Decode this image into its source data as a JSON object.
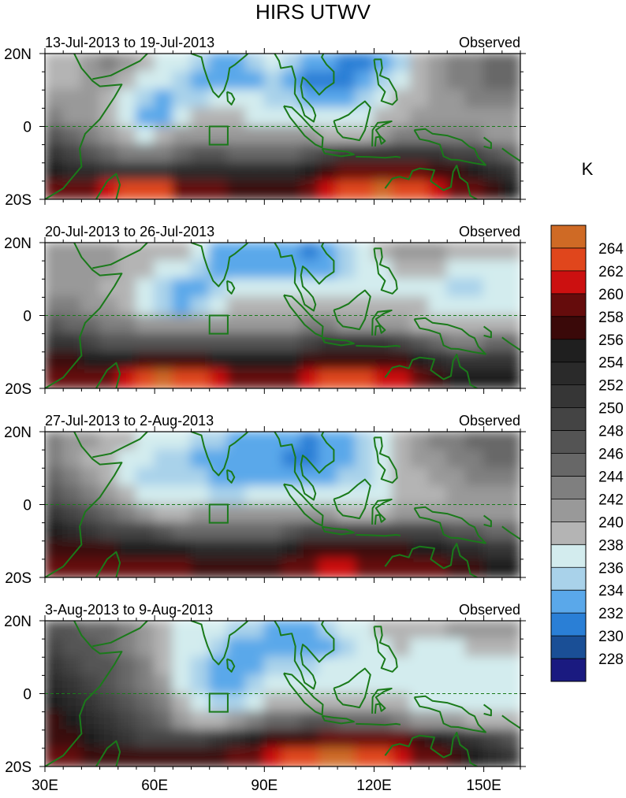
{
  "chart_data": {
    "type": "heatmap",
    "title": "HIRS UTWV",
    "units_label": "K",
    "x_ticks": [
      {
        "value": 30,
        "label": "30E"
      },
      {
        "value": 60,
        "label": "60E"
      },
      {
        "value": 90,
        "label": "90E"
      },
      {
        "value": 120,
        "label": "120E"
      },
      {
        "value": 150,
        "label": "150E"
      }
    ],
    "y_ticks": [
      {
        "value": 20,
        "label": "20N"
      },
      {
        "value": 0,
        "label": "0"
      },
      {
        "value": -20,
        "label": "20S"
      }
    ],
    "xlim": [
      30,
      160
    ],
    "ylim": [
      -20,
      20
    ],
    "colorbar": {
      "levels": [
        228,
        230,
        232,
        234,
        236,
        238,
        240,
        242,
        244,
        246,
        248,
        250,
        252,
        254,
        256,
        258,
        260,
        262,
        264
      ],
      "colors": [
        "#1a1a80",
        "#1a4f96",
        "#2a7fd6",
        "#5aa8ea",
        "#a9d2ea",
        "#d3ecee",
        "#b4b4b4",
        "#999999",
        "#7f7f7f",
        "#676767",
        "#545454",
        "#444444",
        "#363636",
        "#2a2a2a",
        "#1f1f1f",
        "#3a0909",
        "#650c0c",
        "#cc1010",
        "#e0461c",
        "#cf6a25"
      ]
    },
    "panels": [
      {
        "period": "13-Jul-2013 to 19-Jul-2013",
        "label": "Observed",
        "rows": [
          [
            238,
            238,
            240,
            242,
            240,
            238,
            236,
            236,
            234,
            232,
            232,
            234,
            236,
            234,
            232,
            232,
            230,
            230,
            232,
            234,
            238,
            240,
            242,
            242,
            244,
            244
          ],
          [
            238,
            238,
            240,
            240,
            238,
            236,
            236,
            234,
            232,
            232,
            232,
            232,
            234,
            232,
            230,
            230,
            230,
            232,
            234,
            236,
            238,
            240,
            242,
            242,
            244,
            244
          ],
          [
            240,
            240,
            240,
            238,
            236,
            234,
            232,
            234,
            234,
            236,
            236,
            236,
            234,
            234,
            232,
            232,
            232,
            234,
            236,
            238,
            238,
            240,
            240,
            242,
            242,
            242
          ],
          [
            242,
            240,
            240,
            238,
            236,
            232,
            232,
            236,
            238,
            238,
            238,
            236,
            236,
            236,
            236,
            236,
            236,
            236,
            238,
            238,
            240,
            240,
            240,
            240,
            240,
            240
          ],
          [
            246,
            244,
            242,
            240,
            238,
            236,
            238,
            240,
            240,
            240,
            240,
            240,
            240,
            240,
            240,
            238,
            238,
            238,
            240,
            242,
            242,
            242,
            242,
            242,
            240,
            240
          ],
          [
            250,
            248,
            246,
            244,
            242,
            242,
            242,
            244,
            246,
            246,
            244,
            244,
            244,
            244,
            246,
            248,
            250,
            250,
            250,
            250,
            250,
            250,
            248,
            248,
            246,
            244
          ],
          [
            254,
            252,
            252,
            250,
            250,
            250,
            250,
            252,
            252,
            252,
            252,
            252,
            252,
            252,
            254,
            256,
            258,
            258,
            258,
            258,
            258,
            256,
            256,
            254,
            252,
            250
          ],
          [
            258,
            258,
            258,
            260,
            262,
            262,
            262,
            258,
            258,
            258,
            256,
            256,
            256,
            256,
            258,
            260,
            262,
            262,
            264,
            262,
            262,
            260,
            258,
            258,
            256,
            254
          ]
        ]
      },
      {
        "period": "20-Jul-2013 to 26-Jul-2013",
        "label": "Observed",
        "rows": [
          [
            240,
            240,
            240,
            240,
            238,
            238,
            238,
            238,
            236,
            232,
            232,
            232,
            232,
            232,
            230,
            232,
            234,
            236,
            238,
            240,
            240,
            240,
            238,
            238,
            238,
            238
          ],
          [
            240,
            240,
            240,
            240,
            238,
            238,
            236,
            236,
            234,
            232,
            232,
            232,
            232,
            232,
            232,
            232,
            234,
            236,
            236,
            238,
            238,
            238,
            236,
            236,
            236,
            236
          ],
          [
            240,
            240,
            240,
            238,
            238,
            236,
            234,
            232,
            232,
            234,
            236,
            236,
            236,
            236,
            236,
            236,
            236,
            236,
            236,
            236,
            236,
            236,
            234,
            234,
            236,
            236
          ],
          [
            242,
            242,
            240,
            240,
            238,
            236,
            234,
            232,
            234,
            236,
            238,
            238,
            238,
            238,
            238,
            238,
            238,
            238,
            238,
            238,
            238,
            236,
            236,
            236,
            236,
            236
          ],
          [
            246,
            244,
            244,
            242,
            242,
            240,
            240,
            240,
            240,
            240,
            240,
            240,
            240,
            240,
            242,
            242,
            240,
            240,
            240,
            240,
            238,
            238,
            238,
            238,
            238,
            238
          ],
          [
            250,
            250,
            248,
            246,
            246,
            246,
            246,
            246,
            246,
            246,
            246,
            246,
            246,
            246,
            248,
            250,
            250,
            250,
            250,
            248,
            246,
            244,
            242,
            242,
            244,
            244
          ],
          [
            256,
            256,
            254,
            254,
            254,
            256,
            256,
            256,
            256,
            254,
            254,
            254,
            254,
            254,
            256,
            256,
            256,
            256,
            256,
            256,
            254,
            252,
            250,
            250,
            250,
            250
          ],
          [
            258,
            258,
            258,
            258,
            260,
            262,
            264,
            262,
            262,
            260,
            258,
            258,
            258,
            258,
            260,
            262,
            262,
            262,
            260,
            260,
            258,
            256,
            254,
            254,
            254,
            254
          ]
        ]
      },
      {
        "period": "27-Jul-2013 to 2-Aug-2013",
        "label": "Observed",
        "rows": [
          [
            242,
            240,
            240,
            238,
            238,
            236,
            236,
            236,
            234,
            234,
            232,
            232,
            232,
            232,
            230,
            232,
            232,
            234,
            236,
            238,
            240,
            242,
            242,
            244,
            244,
            244
          ],
          [
            242,
            240,
            238,
            238,
            236,
            236,
            234,
            234,
            232,
            232,
            232,
            232,
            232,
            230,
            230,
            232,
            232,
            234,
            236,
            238,
            240,
            240,
            242,
            242,
            244,
            244
          ],
          [
            244,
            242,
            240,
            238,
            236,
            234,
            234,
            234,
            234,
            232,
            232,
            232,
            232,
            232,
            232,
            232,
            234,
            234,
            236,
            238,
            238,
            240,
            240,
            242,
            242,
            242
          ],
          [
            246,
            244,
            242,
            240,
            238,
            236,
            236,
            236,
            236,
            234,
            234,
            236,
            236,
            236,
            236,
            236,
            236,
            236,
            236,
            238,
            238,
            238,
            240,
            240,
            240,
            240
          ],
          [
            250,
            248,
            246,
            244,
            242,
            240,
            238,
            238,
            240,
            240,
            240,
            240,
            240,
            240,
            240,
            240,
            238,
            238,
            238,
            240,
            240,
            240,
            240,
            240,
            240,
            240
          ],
          [
            254,
            252,
            250,
            248,
            248,
            248,
            246,
            244,
            244,
            244,
            244,
            244,
            244,
            246,
            248,
            248,
            248,
            248,
            248,
            248,
            248,
            248,
            246,
            246,
            244,
            244
          ],
          [
            256,
            256,
            256,
            256,
            254,
            254,
            254,
            254,
            252,
            252,
            252,
            252,
            252,
            254,
            256,
            256,
            256,
            256,
            256,
            256,
            254,
            254,
            252,
            252,
            250,
            250
          ],
          [
            258,
            258,
            258,
            258,
            258,
            258,
            258,
            258,
            256,
            256,
            256,
            256,
            256,
            258,
            258,
            260,
            260,
            258,
            258,
            258,
            258,
            258,
            256,
            256,
            254,
            254
          ]
        ]
      },
      {
        "period": "3-Aug-2013 to 9-Aug-2013",
        "label": "Observed",
        "rows": [
          [
            246,
            246,
            244,
            244,
            242,
            240,
            238,
            236,
            236,
            236,
            234,
            234,
            232,
            232,
            232,
            234,
            236,
            236,
            238,
            238,
            238,
            238,
            240,
            240,
            240,
            240
          ],
          [
            248,
            246,
            246,
            244,
            242,
            240,
            238,
            236,
            236,
            234,
            232,
            232,
            232,
            232,
            232,
            232,
            234,
            236,
            236,
            238,
            236,
            236,
            236,
            238,
            238,
            238
          ],
          [
            250,
            248,
            246,
            246,
            244,
            242,
            238,
            236,
            234,
            232,
            232,
            232,
            234,
            234,
            234,
            236,
            236,
            236,
            236,
            236,
            236,
            236,
            236,
            236,
            236,
            236
          ],
          [
            252,
            250,
            248,
            246,
            244,
            242,
            240,
            236,
            234,
            232,
            232,
            234,
            236,
            236,
            236,
            236,
            236,
            236,
            236,
            236,
            236,
            236,
            236,
            236,
            236,
            236
          ],
          [
            254,
            252,
            250,
            248,
            246,
            244,
            242,
            238,
            236,
            234,
            234,
            236,
            238,
            238,
            238,
            238,
            238,
            238,
            238,
            238,
            236,
            236,
            236,
            236,
            236,
            236
          ],
          [
            256,
            254,
            252,
            250,
            248,
            246,
            244,
            240,
            238,
            238,
            240,
            242,
            244,
            244,
            246,
            246,
            244,
            244,
            244,
            242,
            240,
            240,
            240,
            238,
            238,
            238
          ],
          [
            256,
            256,
            254,
            252,
            250,
            248,
            248,
            248,
            248,
            250,
            252,
            254,
            256,
            256,
            256,
            258,
            258,
            258,
            258,
            258,
            256,
            254,
            252,
            250,
            248,
            246
          ],
          [
            258,
            258,
            256,
            256,
            256,
            256,
            256,
            256,
            256,
            256,
            258,
            258,
            260,
            262,
            262,
            264,
            264,
            262,
            262,
            260,
            258,
            258,
            256,
            254,
            252,
            250
          ]
        ]
      }
    ]
  }
}
